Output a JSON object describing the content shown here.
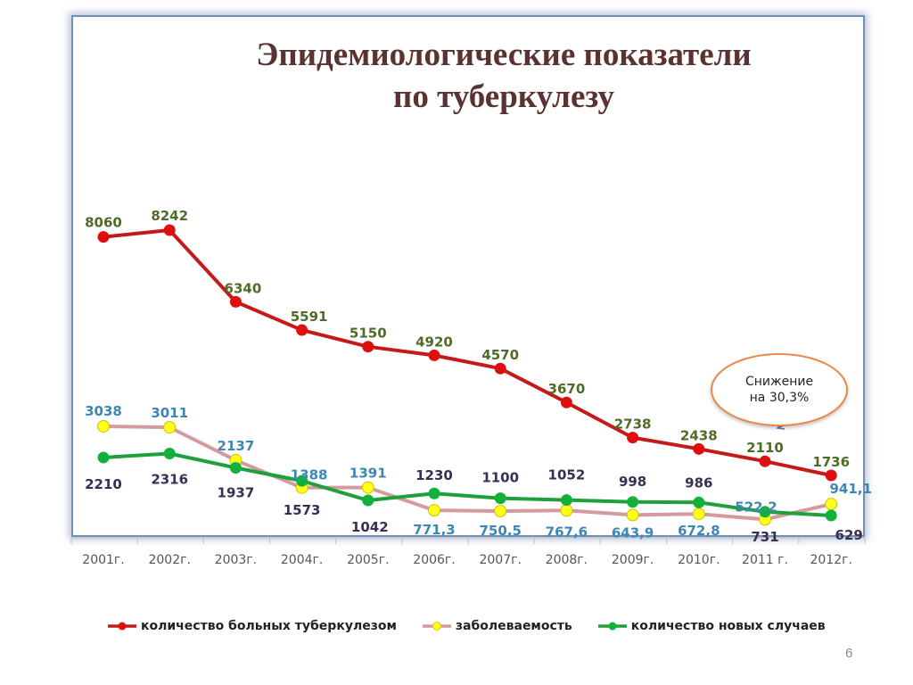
{
  "page_number": "6",
  "annotation": {
    "line1": "Снижение",
    "line2": "на 30,3%"
  },
  "chart_data": {
    "type": "line",
    "title": "Эпидемиологические показатели по туберкулезу",
    "title_lines": [
      "Эпидемиологические показатели",
      "по туберкулезу"
    ],
    "categories": [
      "2001г.",
      "2002г.",
      "2003г.",
      "2004г.",
      "2005г.",
      "2006г.",
      "2007г.",
      "2008г.",
      "2009г.",
      "2010г.",
      "2011 г.",
      "2012г."
    ],
    "legend_position": "bottom",
    "grid": false,
    "series": [
      {
        "name": "количество больных туберкулезом",
        "color": "#c41a1a",
        "marker": "#dd0f0f",
        "label_color": "#4f6b28",
        "values": [
          8060,
          8242,
          6340,
          5591,
          5150,
          4920,
          4570,
          3670,
          2738,
          2438,
          2110,
          1736
        ],
        "labels": [
          "8060",
          "8242",
          "6340",
          "5591",
          "5150",
          "4920",
          "4570",
          "3670",
          "2738",
          "2438",
          "2110",
          "1736"
        ]
      },
      {
        "name": "заболеваемость",
        "color": "#d49aa0",
        "marker": "#ffff1a",
        "label_color": "#3c87b4",
        "values": [
          3038,
          3011,
          2137,
          1388,
          1391,
          771.3,
          750.5,
          767.6,
          643.9,
          672.8,
          522.2,
          941.1
        ],
        "labels": [
          "3038",
          "3011",
          "2137",
          "1388",
          "1391",
          "771,3",
          "750,5",
          "767,6",
          "643,9",
          "672,8",
          "522,2",
          "941,1"
        ]
      },
      {
        "name": "количество новых случаев",
        "color": "#1fa03a",
        "marker": "#11b13a",
        "label_color": "#3a2f52",
        "values": [
          2210,
          2316,
          1937,
          1573,
          1042,
          1230,
          1100,
          1052,
          998,
          986,
          731,
          629
        ],
        "labels": [
          "2210",
          "2316",
          "1937",
          "1573",
          "1042",
          "1230",
          "1100",
          "1052",
          "998",
          "986",
          "731",
          "629"
        ]
      }
    ]
  }
}
